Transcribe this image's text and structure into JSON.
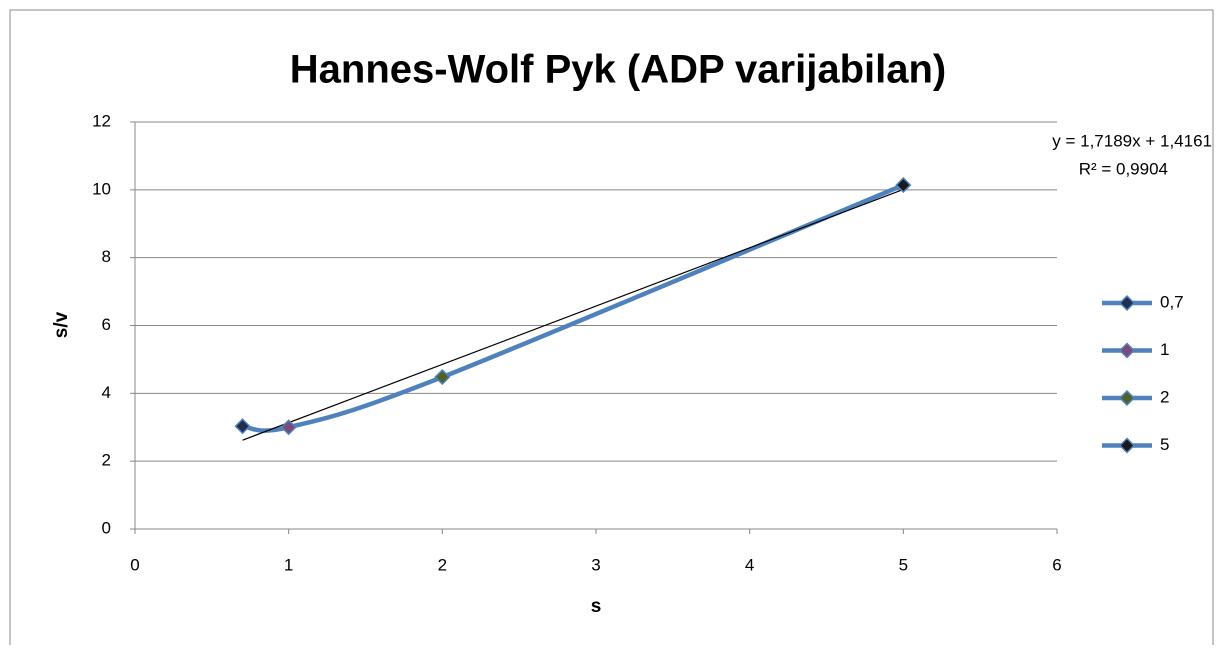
{
  "chart_data": {
    "type": "scatter",
    "title": "Hannes-Wolf Pyk (ADP varijabilan)",
    "xlabel": "s",
    "ylabel": "s/v",
    "x": [
      0.7,
      1,
      2,
      5
    ],
    "values": [
      3.03,
      3.0,
      4.48,
      10.14
    ],
    "legend": [
      "0,7",
      "1",
      "2",
      "5"
    ],
    "line_color": "#4f81bd",
    "point_colors": [
      "#1f2f4f",
      "#7a4a7a",
      "#4f6228",
      "#1a1a1a"
    ],
    "smooth": true,
    "xlim": [
      0,
      6
    ],
    "xticks": [
      0,
      1,
      2,
      3,
      4,
      5,
      6
    ],
    "ylim": [
      0,
      12
    ],
    "yticks": [
      0,
      2,
      4,
      6,
      8,
      10,
      12
    ],
    "grid": true,
    "legend_position": "right",
    "trendline": {
      "slope": 1.7189,
      "intercept": 1.4161,
      "label": "y = 1,7189x + 1,4161",
      "r2_label": "R² = 0,9904",
      "color": "#000000"
    }
  }
}
